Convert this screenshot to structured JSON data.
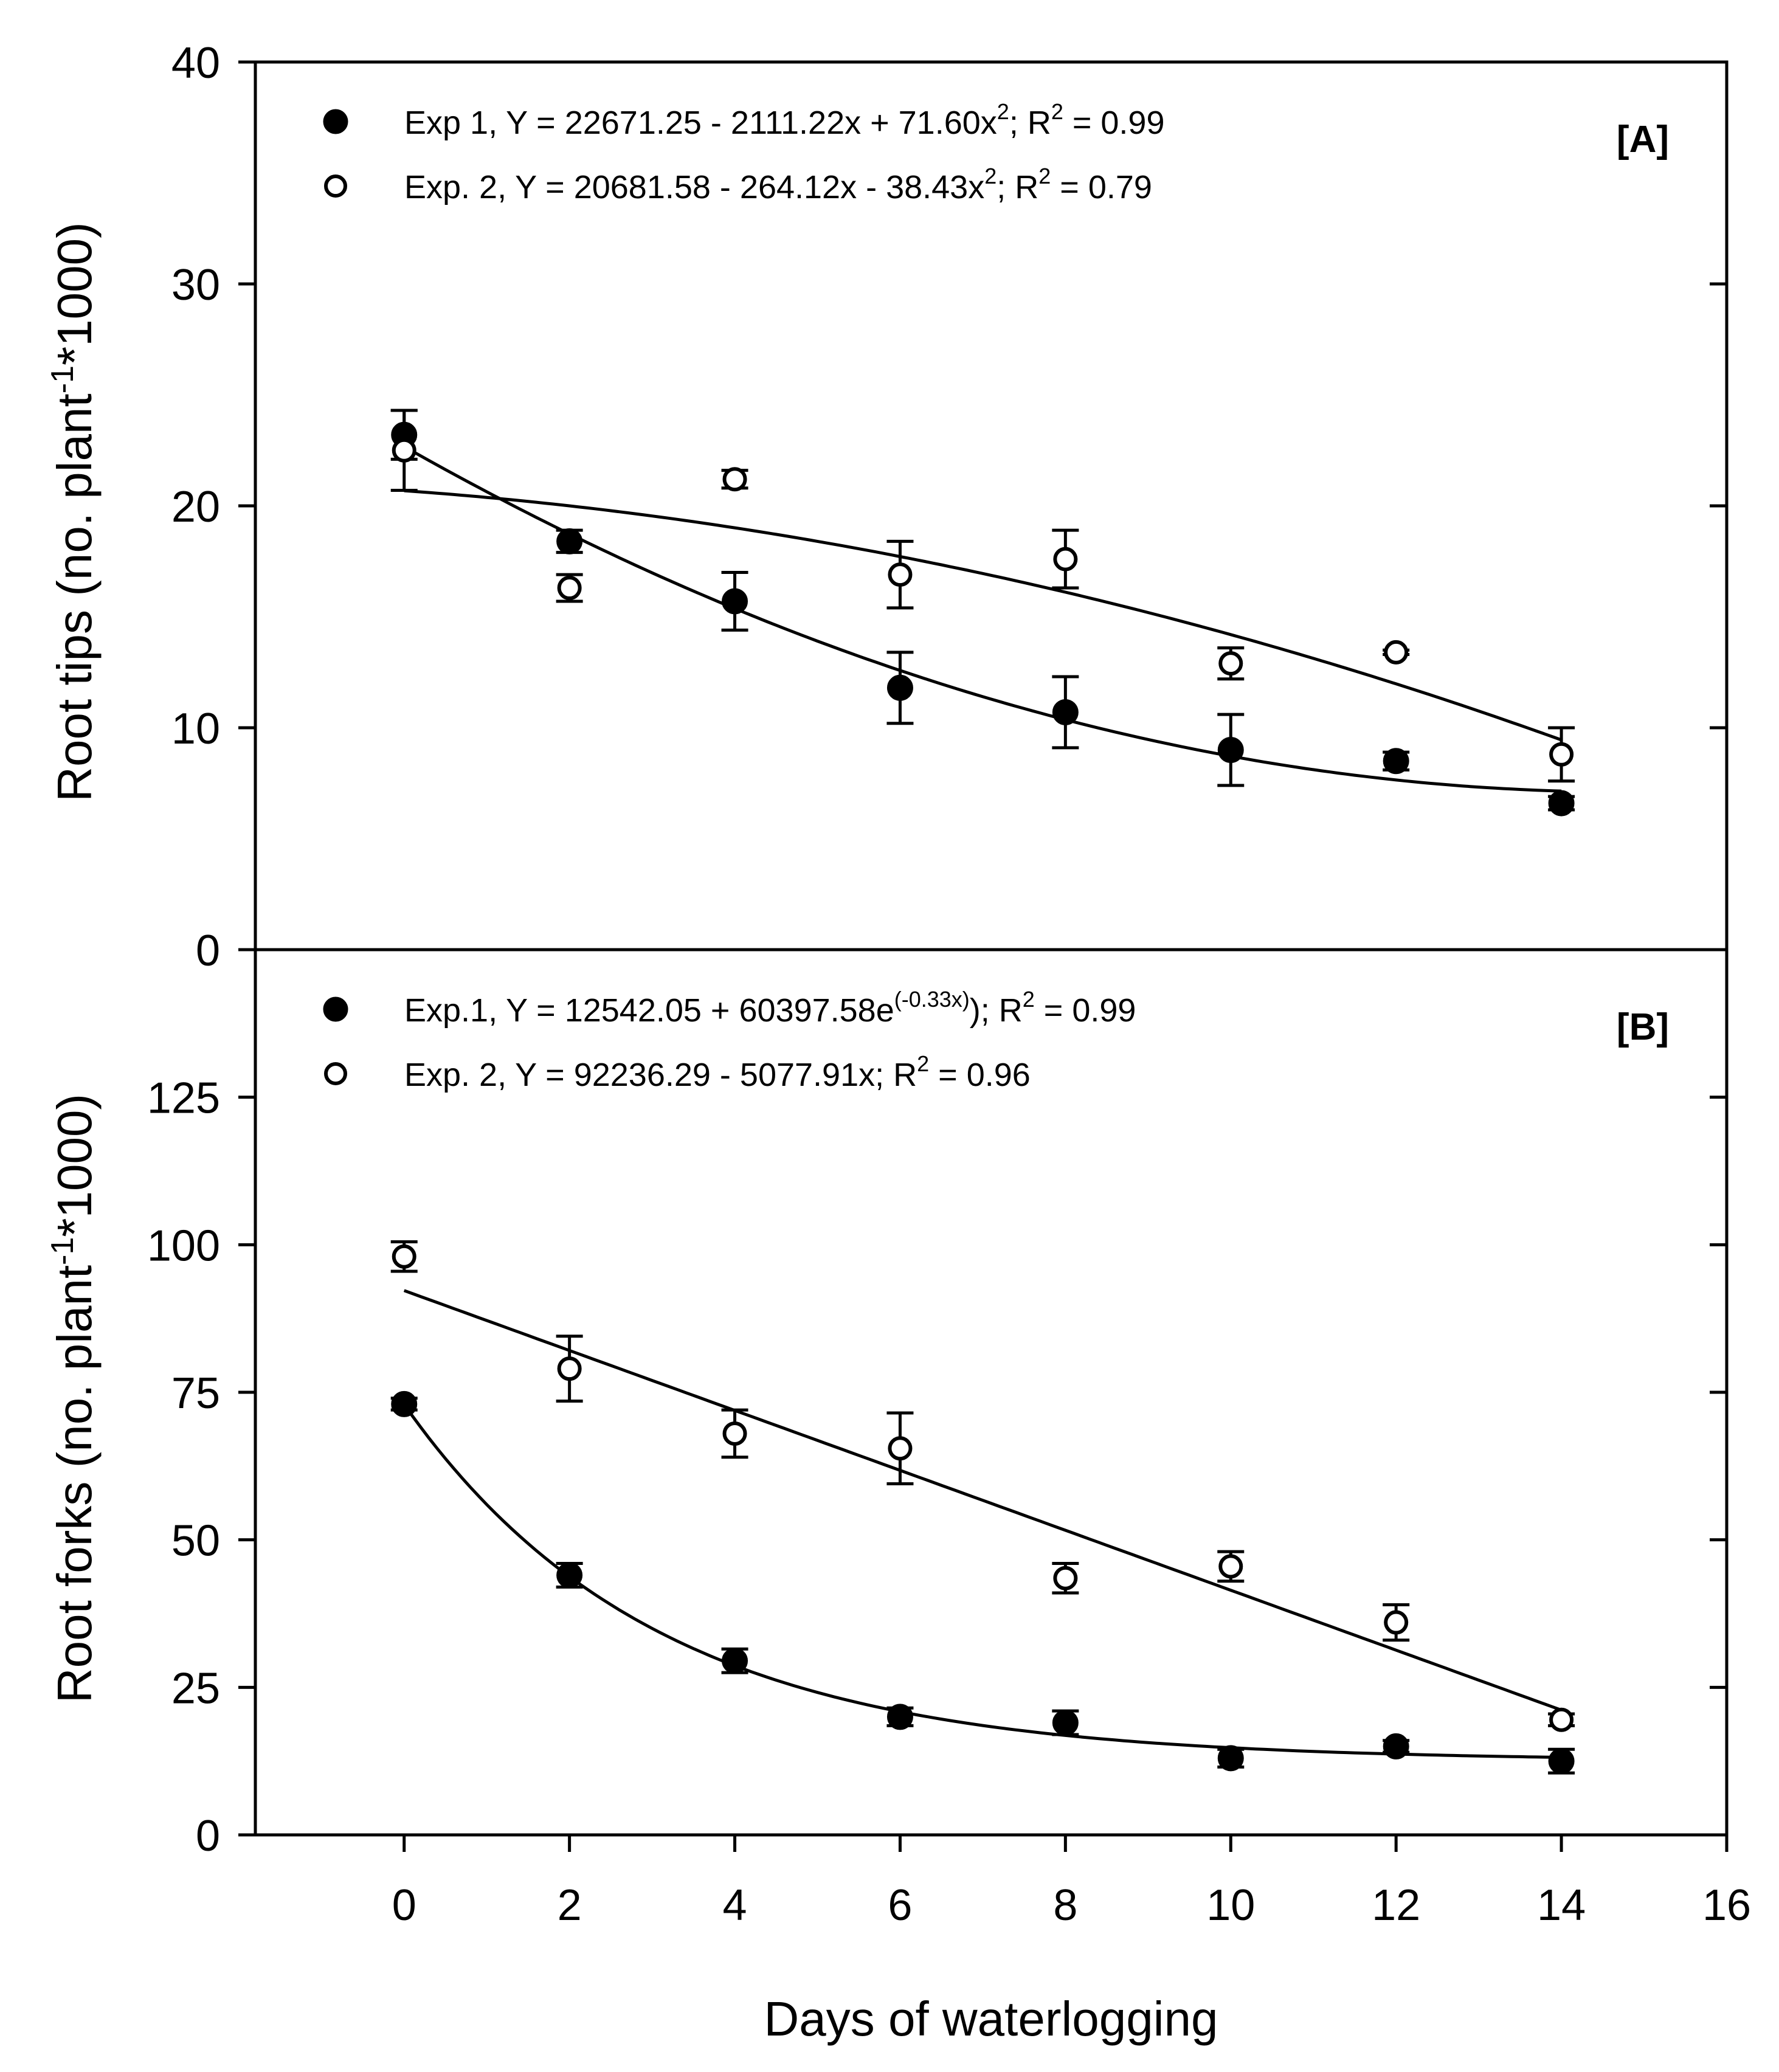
{
  "chart_data": {
    "type": "scatter",
    "x_axis": {
      "label": "Days of waterlogging",
      "ticks": [
        0,
        2,
        4,
        6,
        8,
        10,
        12,
        14,
        16
      ],
      "range": [
        -1.8,
        16
      ]
    },
    "panels": [
      {
        "tag": "[A]",
        "ylabel": {
          "main": "Root tips (no. plant",
          "sup": "-1",
          "end": "*1000)"
        },
        "ylim": [
          0,
          40
        ],
        "yticks": [
          0,
          10,
          20,
          30,
          40
        ],
        "series": [
          {
            "name": "Exp 1",
            "marker": "filled-circle",
            "legend": {
              "prefix": "Exp 1, Y = 22671.25 - 2111.22x + 71.60x",
              "sup1": "2",
              "mid": "; R",
              "sup2": "2",
              "suffix": " = 0.99"
            },
            "x": [
              0,
              2,
              4,
              6,
              8,
              10,
              12,
              14
            ],
            "y": [
              23.2,
              18.4,
              15.7,
              11.8,
              10.7,
              9.0,
              8.5,
              6.6
            ],
            "err": [
              1.1,
              0.5,
              1.3,
              1.6,
              1.6,
              1.6,
              0.4,
              0.3
            ],
            "fit": {
              "kind": "quadratic",
              "coef": [
                22.67125,
                -2.11122,
                0.0716
              ]
            }
          },
          {
            "name": "Exp. 2",
            "marker": "open-circle",
            "legend": {
              "prefix": "Exp. 2, Y = 20681.58 - 264.12x - 38.43x",
              "sup1": "2",
              "mid": "; R",
              "sup2": "2",
              "suffix": " = 0.79"
            },
            "x": [
              0,
              2,
              4,
              6,
              8,
              10,
              12,
              14
            ],
            "y": [
              22.5,
              16.3,
              21.2,
              16.9,
              17.6,
              12.9,
              13.4,
              8.8
            ],
            "err": [
              1.8,
              0.6,
              0.4,
              1.5,
              1.3,
              0.7,
              0.1,
              1.2
            ],
            "fit": {
              "kind": "quadratic",
              "coef": [
                20.68158,
                -0.26412,
                -0.03843
              ]
            }
          }
        ]
      },
      {
        "tag": "[B]",
        "ylabel": {
          "main": "Root forks (no. plant",
          "sup": "-1",
          "end": "*1000)"
        },
        "ylim": [
          0,
          150
        ],
        "yticks": [
          0,
          25,
          50,
          75,
          100,
          125
        ],
        "series": [
          {
            "name": "Exp.1",
            "marker": "filled-circle",
            "legend": {
              "prefix": "Exp.1, Y = 12542.05 + 60397.58e",
              "sup1": "(-0.33x)",
              "mid": "); R",
              "sup2": "2",
              "suffix": " = 0.99"
            },
            "x": [
              0,
              2,
              4,
              6,
              8,
              10,
              12,
              14
            ],
            "y": [
              73,
              44,
              29.5,
              20,
              19,
              13,
              15,
              12.5
            ],
            "err": [
              1,
              2,
              2,
              1.5,
              2,
              1.5,
              1,
              2
            ],
            "fit": {
              "kind": "exponential",
              "a": 12.54205,
              "b": 60.39758,
              "k": -0.33
            }
          },
          {
            "name": "Exp. 2",
            "marker": "open-circle",
            "legend": {
              "prefix": "Exp. 2, Y = 92236.29 - 5077.91x",
              "sup1": "",
              "mid": "; R",
              "sup2": "2",
              "suffix": " = 0.96"
            },
            "x": [
              0,
              2,
              4,
              6,
              8,
              10,
              12,
              14
            ],
            "y": [
              98,
              79,
              68,
              65.5,
              43.5,
              45.5,
              36,
              19.5
            ],
            "err": [
              2.5,
              5.5,
              4,
              6,
              2.5,
              2.5,
              3,
              1
            ],
            "fit": {
              "kind": "linear",
              "coef": [
                92.23629,
                -5.07791
              ]
            }
          }
        ]
      }
    ]
  }
}
